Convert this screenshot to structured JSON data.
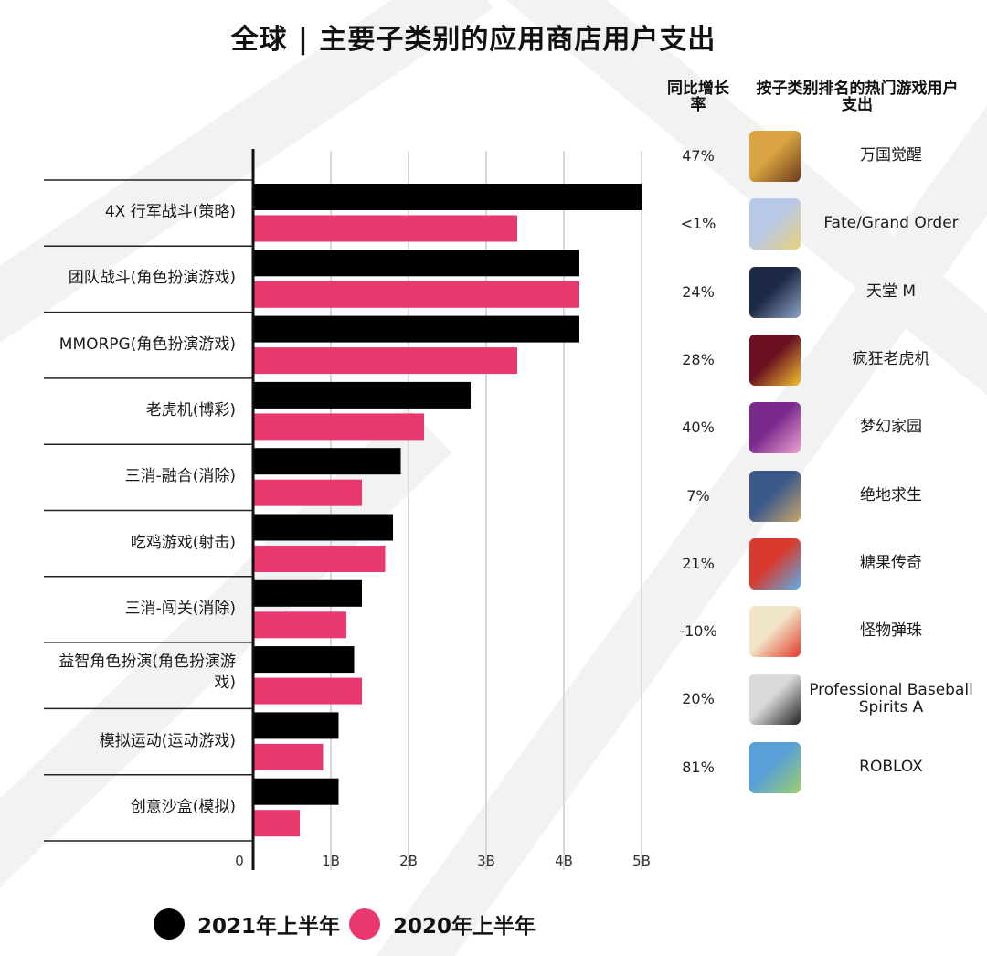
{
  "page": {
    "title": "全球 | 主要子类别的应用商店用户支出",
    "headers": {
      "growth": "同比增长率",
      "top_game": "按子类别排名的热门游戏用户支出"
    }
  },
  "colors": {
    "series_2021": "#000000",
    "series_2020": "#e8386e",
    "axis": "#111111",
    "grid": "#cccccc"
  },
  "chart_data": {
    "type": "bar",
    "orientation": "horizontal",
    "title": "全球 | 主要子类别的应用商店用户支出",
    "xlabel": "",
    "ylabel": "",
    "xlim": [
      0,
      5
    ],
    "tick_labels": [
      "0",
      "1B",
      "2B",
      "3B",
      "4B",
      "5B"
    ],
    "grid": true,
    "legend_position": "bottom",
    "categories": [
      "4X 行军战斗(策略)",
      "团队战斗(角色扮演游戏)",
      "MMORPG(角色扮演游戏)",
      "老虎机(博彩)",
      "三消-融合(消除)",
      "吃鸡游戏(射击)",
      "三消-闯关(消除)",
      "益智角色扮演(角色扮演游戏)",
      "模拟运动(运动游戏)",
      "创意沙盒(模拟)"
    ],
    "series": [
      {
        "name": "2021年上半年",
        "color": "#000000",
        "values": [
          5.0,
          4.2,
          4.2,
          2.8,
          1.9,
          1.8,
          1.4,
          1.3,
          1.1,
          1.1
        ]
      },
      {
        "name": "2020年上半年",
        "color": "#e8386e",
        "values": [
          3.4,
          4.2,
          3.4,
          2.2,
          1.4,
          1.7,
          1.2,
          1.4,
          0.9,
          0.6
        ]
      }
    ]
  },
  "rows": [
    {
      "growth": "47%",
      "game": "万国觉醒",
      "icon": "rise-of-kingdoms-icon"
    },
    {
      "growth": "<1%",
      "game": "Fate/Grand Order",
      "icon": "fate-grand-order-icon"
    },
    {
      "growth": "24%",
      "game": "天堂 M",
      "icon": "lineage-m-icon"
    },
    {
      "growth": "28%",
      "game": "疯狂老虎机",
      "icon": "slotomania-icon"
    },
    {
      "growth": "40%",
      "game": "梦幻家园",
      "icon": "homescapes-icon"
    },
    {
      "growth": "7%",
      "game": "绝地求生",
      "icon": "pubg-mobile-icon"
    },
    {
      "growth": "21%",
      "game": "糖果传奇",
      "icon": "candy-crush-icon"
    },
    {
      "growth": "-10%",
      "game": "怪物弹珠",
      "icon": "monster-strike-icon"
    },
    {
      "growth": "20%",
      "game": "Professional Baseball Spirits A",
      "icon": "pro-baseball-spirits-icon"
    },
    {
      "growth": "81%",
      "game": "ROBLOX",
      "icon": "roblox-icon"
    }
  ],
  "legend": [
    {
      "label": "2021年上半年",
      "color": "#000000"
    },
    {
      "label": "2020年上半年",
      "color": "#e8386e"
    }
  ]
}
